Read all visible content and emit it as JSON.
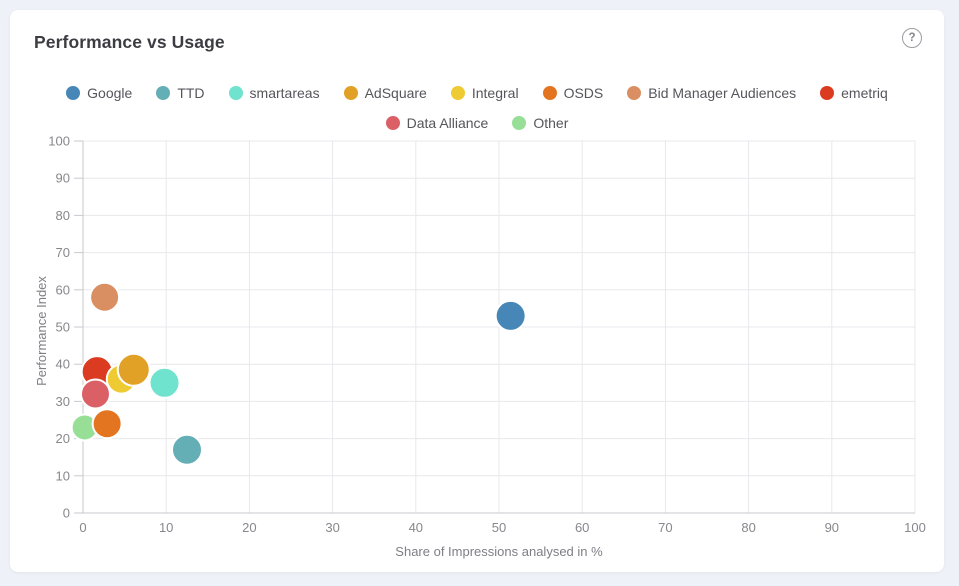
{
  "card": {
    "title": "Performance vs Usage",
    "help_label": "?"
  },
  "chart_data": {
    "type": "scatter",
    "subtype": "bubble",
    "title": "Performance vs Usage",
    "xlabel": "Share of Impressions analysed in %",
    "ylabel": "Performance Index",
    "xlim": [
      0,
      100
    ],
    "ylim": [
      0,
      100
    ],
    "x_ticks": [
      0,
      10,
      20,
      30,
      40,
      50,
      60,
      70,
      80,
      90,
      100
    ],
    "y_ticks": [
      0,
      10,
      20,
      30,
      40,
      50,
      60,
      70,
      80,
      90,
      100
    ],
    "grid": true,
    "legend_position": "top-center",
    "legend_row_break": 8,
    "series": [
      {
        "name": "Google",
        "slug": "google",
        "x": 51.4,
        "y": 53,
        "r": 15,
        "color": "#4687B7"
      },
      {
        "name": "TTD",
        "slug": "ttd",
        "x": 12.5,
        "y": 17,
        "r": 15,
        "color": "#64AFB6"
      },
      {
        "name": "smartareas",
        "slug": "smartareas",
        "x": 9.8,
        "y": 35,
        "r": 15,
        "color": "#6FE3CD"
      },
      {
        "name": "AdSquare",
        "slug": "adsquare",
        "x": 6.1,
        "y": 38.5,
        "r": 16,
        "color": "#E1A127"
      },
      {
        "name": "Integral",
        "slug": "integral",
        "x": 4.6,
        "y": 36,
        "r": 14.5,
        "color": "#EECB32"
      },
      {
        "name": "OSDS",
        "slug": "osds",
        "x": 2.9,
        "y": 24,
        "r": 14.5,
        "color": "#E37420"
      },
      {
        "name": "Bid Manager Audiences",
        "slug": "bid-manager-audiences",
        "x": 2.6,
        "y": 58,
        "r": 14.5,
        "color": "#D98F62"
      },
      {
        "name": "emetriq",
        "slug": "emetriq",
        "x": 1.7,
        "y": 38,
        "r": 15.5,
        "color": "#DB3B20"
      },
      {
        "name": "Data Alliance",
        "slug": "data-alliance",
        "x": 1.5,
        "y": 32,
        "r": 14.5,
        "color": "#DB6066"
      },
      {
        "name": "Other",
        "slug": "other",
        "x": 0.2,
        "y": 23,
        "r": 13,
        "color": "#97DE97"
      }
    ],
    "draw_order": [
      "Bid Manager Audiences",
      "emetriq",
      "Data Alliance",
      "Integral",
      "AdSquare",
      "smartareas",
      "Other",
      "OSDS",
      "TTD",
      "Google"
    ]
  },
  "chart_style": {
    "grid_color": "#e8e8ec",
    "axis_color": "#c9c9ce",
    "bubble_stroke": "#ffffff"
  }
}
